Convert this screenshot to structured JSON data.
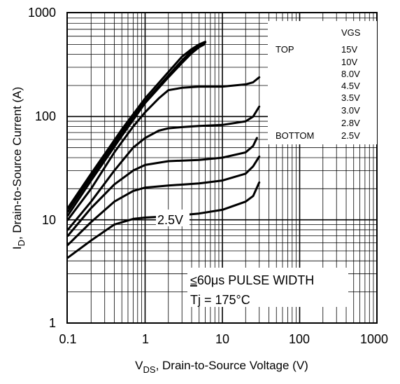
{
  "chart_data": {
    "type": "line",
    "title": "",
    "xlabel": {
      "main": "V",
      "sub": "DS",
      "rest": ", Drain-to-Source Voltage (V)"
    },
    "ylabel": {
      "main": "I",
      "sub": "D",
      "rest": ", Drain-to-Source Current (A)"
    },
    "x_scale": "log",
    "y_scale": "log",
    "xlim": [
      0.1,
      1000
    ],
    "ylim": [
      1,
      1000
    ],
    "x_ticks": [
      "0.1",
      "1",
      "10",
      "100",
      "1000"
    ],
    "y_ticks": [
      "1",
      "10",
      "100",
      "1000"
    ],
    "grid": true,
    "legend": {
      "placement": "top-right",
      "header": "VGS",
      "top_label": "TOP",
      "bottom_label": "BOTTOM",
      "entries": [
        "15V",
        "10V",
        "8.0V",
        "4.5V",
        "3.5V",
        "3.0V",
        "2.8V",
        "2.5V"
      ]
    },
    "series": [
      {
        "name": "15V",
        "points": [
          [
            0.1,
            13
          ],
          [
            0.2,
            28
          ],
          [
            0.5,
            75
          ],
          [
            1,
            150
          ],
          [
            2,
            270
          ],
          [
            3,
            380
          ],
          [
            4,
            450
          ],
          [
            5,
            500
          ],
          [
            6,
            530
          ]
        ]
      },
      {
        "name": "10V",
        "points": [
          [
            0.1,
            12
          ],
          [
            0.2,
            26
          ],
          [
            0.5,
            70
          ],
          [
            1,
            140
          ],
          [
            2,
            250
          ],
          [
            3,
            350
          ],
          [
            4,
            430
          ],
          [
            5,
            490
          ],
          [
            6,
            520
          ]
        ]
      },
      {
        "name": "8.0V",
        "points": [
          [
            0.1,
            11
          ],
          [
            0.2,
            24
          ],
          [
            0.5,
            65
          ],
          [
            1,
            135
          ],
          [
            2,
            240
          ],
          [
            3,
            330
          ],
          [
            4,
            410
          ],
          [
            5,
            470
          ],
          [
            5.8,
            500
          ]
        ]
      },
      {
        "name": "4.5V",
        "points": [
          [
            0.1,
            10
          ],
          [
            0.2,
            20
          ],
          [
            0.4,
            45
          ],
          [
            0.7,
            80
          ],
          [
            1,
            110
          ],
          [
            1.5,
            150
          ],
          [
            2,
            180
          ],
          [
            3,
            190
          ],
          [
            5,
            195
          ],
          [
            10,
            195
          ],
          [
            20,
            205
          ],
          [
            25,
            215
          ],
          [
            30,
            240
          ]
        ]
      },
      {
        "name": "3.5V",
        "points": [
          [
            0.1,
            8
          ],
          [
            0.2,
            15
          ],
          [
            0.4,
            30
          ],
          [
            0.7,
            50
          ],
          [
            1,
            62
          ],
          [
            1.5,
            73
          ],
          [
            2,
            77
          ],
          [
            3,
            79
          ],
          [
            5,
            81
          ],
          [
            10,
            83
          ],
          [
            20,
            90
          ],
          [
            25,
            100
          ],
          [
            30,
            125
          ]
        ]
      },
      {
        "name": "3.0V",
        "points": [
          [
            0.1,
            7
          ],
          [
            0.2,
            13
          ],
          [
            0.4,
            22
          ],
          [
            0.7,
            30
          ],
          [
            1,
            34
          ],
          [
            2,
            37
          ],
          [
            5,
            38
          ],
          [
            10,
            40
          ],
          [
            20,
            45
          ],
          [
            25,
            52
          ],
          [
            28,
            62
          ]
        ]
      },
      {
        "name": "2.8V",
        "points": [
          [
            0.1,
            5.7
          ],
          [
            0.2,
            9.5
          ],
          [
            0.4,
            15
          ],
          [
            0.7,
            19
          ],
          [
            1,
            20.5
          ],
          [
            2,
            21.5
          ],
          [
            5,
            22.5
          ],
          [
            10,
            24
          ],
          [
            20,
            28
          ],
          [
            25,
            33
          ],
          [
            30,
            41
          ]
        ]
      },
      {
        "name": "2.5V",
        "points": [
          [
            0.1,
            4.3
          ],
          [
            0.2,
            6.3
          ],
          [
            0.4,
            9
          ],
          [
            0.7,
            10.2
          ],
          [
            1,
            10.5
          ],
          [
            2,
            10.8
          ],
          [
            5,
            11.5
          ],
          [
            10,
            12.5
          ],
          [
            20,
            15
          ],
          [
            25,
            17
          ],
          [
            30,
            23
          ]
        ]
      }
    ],
    "annotations": {
      "curve_label": "2.5V",
      "pulse_note_prefix": "≤",
      "pulse_note": "60μs PULSE WIDTH",
      "temp_note": "Tj = 175°C"
    }
  }
}
